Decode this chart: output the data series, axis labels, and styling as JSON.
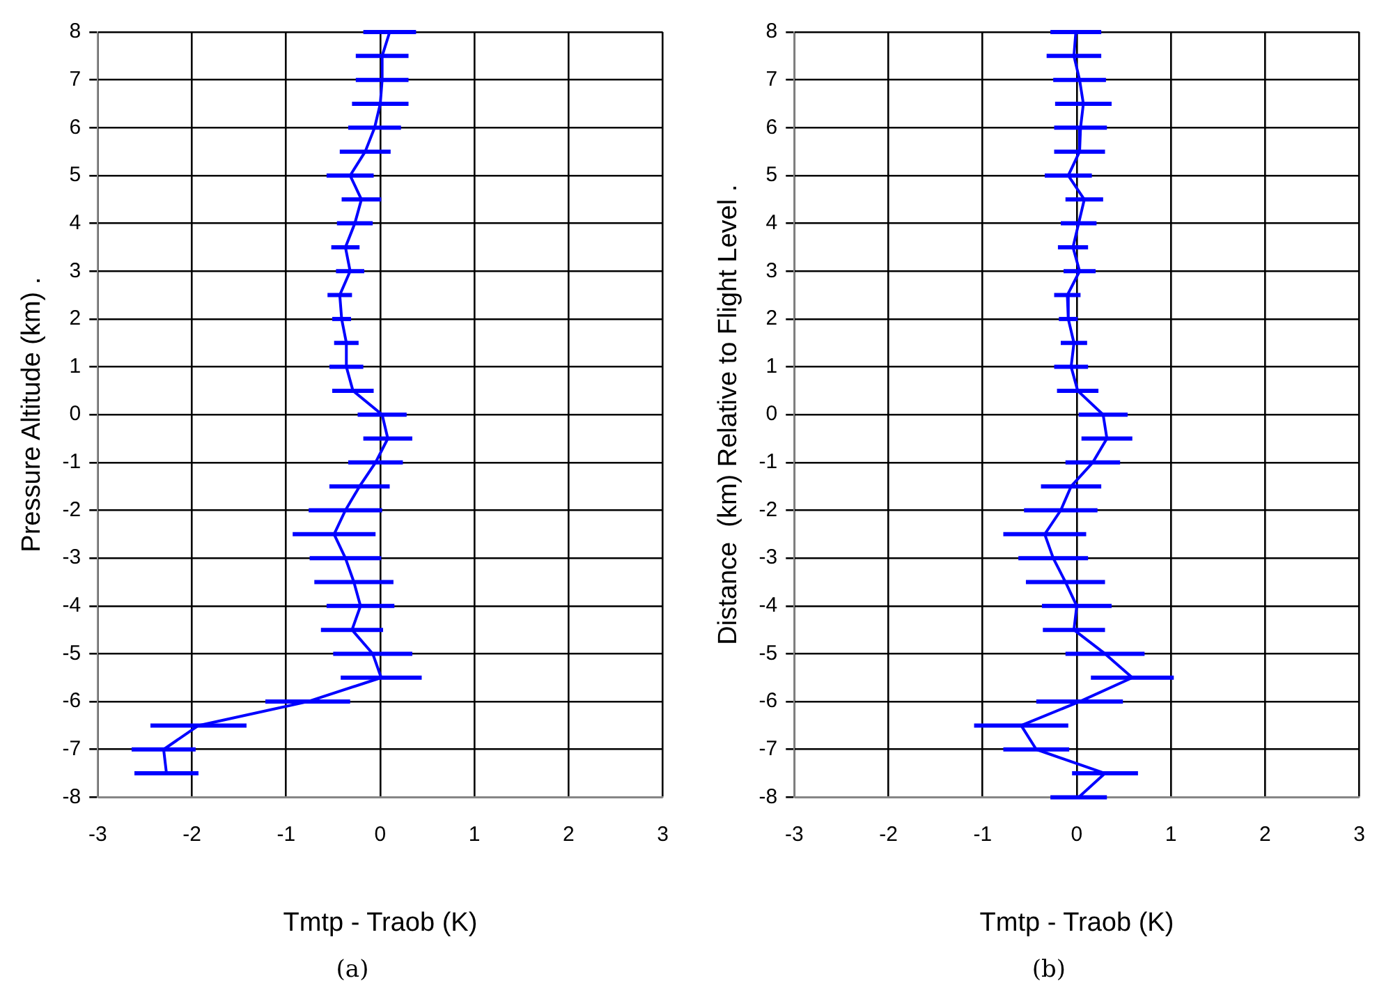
{
  "chart_data": [
    {
      "type": "line",
      "xlabel": "Tmtp - Traob (K)",
      "ylabel": "Pressure Altitude (km) .",
      "annotations": [
        "(a)"
      ],
      "xlim": [
        -3,
        3
      ],
      "xticks": [
        -3,
        -2,
        -1,
        0,
        1,
        2,
        3
      ],
      "ylim": [
        -8,
        8
      ],
      "yticks": [
        -8,
        -7,
        -6,
        -5,
        -4,
        -3,
        -2,
        -1,
        0,
        1,
        2,
        3,
        4,
        5,
        6,
        7,
        8
      ],
      "grid": true,
      "legend": false,
      "marker": "none",
      "line_style": "solid",
      "series": [
        {
          "color": "#0000ff",
          "x": [
            0.1,
            0.02,
            0.02,
            0.0,
            -0.06,
            -0.16,
            -0.32,
            -0.2,
            -0.27,
            -0.37,
            -0.32,
            -0.43,
            -0.41,
            -0.36,
            -0.36,
            -0.29,
            0.02,
            0.08,
            -0.05,
            -0.22,
            -0.37,
            -0.49,
            -0.37,
            -0.28,
            -0.21,
            -0.3,
            -0.08,
            0.01,
            -0.77,
            -1.93,
            -2.3,
            -2.27
          ],
          "values": [
            8,
            7.5,
            7,
            6.5,
            6,
            5.5,
            5,
            4.5,
            4,
            3.5,
            3,
            2.5,
            2,
            1.5,
            1,
            0.5,
            0,
            -0.5,
            -1,
            -1.5,
            -2,
            -2.5,
            -3,
            -3.5,
            -4,
            -4.5,
            -5,
            -5.5,
            -6,
            -6.5,
            -7,
            -7.5
          ],
          "xerrors": [
            0.28,
            0.28,
            0.28,
            0.3,
            0.28,
            0.27,
            0.25,
            0.21,
            0.19,
            0.15,
            0.15,
            0.13,
            0.1,
            0.13,
            0.18,
            0.22,
            0.26,
            0.26,
            0.29,
            0.32,
            0.39,
            0.44,
            0.38,
            0.42,
            0.36,
            0.33,
            0.42,
            0.43,
            0.45,
            0.51,
            0.34,
            0.34
          ]
        }
      ]
    },
    {
      "type": "line",
      "xlabel": "Tmtp - Traob (K)",
      "ylabel": "Distance  (km) Relative to Flight Level .",
      "annotations": [
        "(b)"
      ],
      "xlim": [
        -3,
        3
      ],
      "xticks": [
        -3,
        -2,
        -1,
        0,
        1,
        2,
        3
      ],
      "ylim": [
        -8,
        8
      ],
      "yticks": [
        -8,
        -7,
        -6,
        -5,
        -4,
        -3,
        -2,
        -1,
        0,
        1,
        2,
        3,
        4,
        5,
        6,
        7,
        8
      ],
      "grid": true,
      "legend": false,
      "marker": "none",
      "line_style": "solid",
      "series": [
        {
          "color": "#0000ff",
          "x": [
            -0.01,
            -0.03,
            0.03,
            0.07,
            0.04,
            0.03,
            -0.09,
            0.08,
            0.02,
            -0.04,
            0.03,
            -0.1,
            -0.09,
            -0.03,
            -0.06,
            0.01,
            0.28,
            0.32,
            0.17,
            -0.06,
            -0.17,
            -0.34,
            -0.25,
            -0.12,
            0.0,
            -0.03,
            0.3,
            0.59,
            0.03,
            -0.59,
            -0.43,
            0.3,
            0.02
          ],
          "values": [
            8,
            7.5,
            7,
            6.5,
            6,
            5.5,
            5,
            4.5,
            4,
            3.5,
            3,
            2.5,
            2,
            1.5,
            1,
            0.5,
            0,
            -0.5,
            -1,
            -1.5,
            -2,
            -2.5,
            -3,
            -3.5,
            -4,
            -4.5,
            -5,
            -5.5,
            -6,
            -6.5,
            -7,
            -7.5,
            -8
          ],
          "xerrors": [
            0.27,
            0.29,
            0.28,
            0.3,
            0.28,
            0.27,
            0.25,
            0.2,
            0.19,
            0.16,
            0.17,
            0.14,
            0.1,
            0.14,
            0.18,
            0.22,
            0.26,
            0.27,
            0.29,
            0.32,
            0.39,
            0.44,
            0.37,
            0.42,
            0.37,
            0.33,
            0.42,
            0.44,
            0.46,
            0.5,
            0.35,
            0.35,
            0.3
          ]
        }
      ]
    }
  ]
}
